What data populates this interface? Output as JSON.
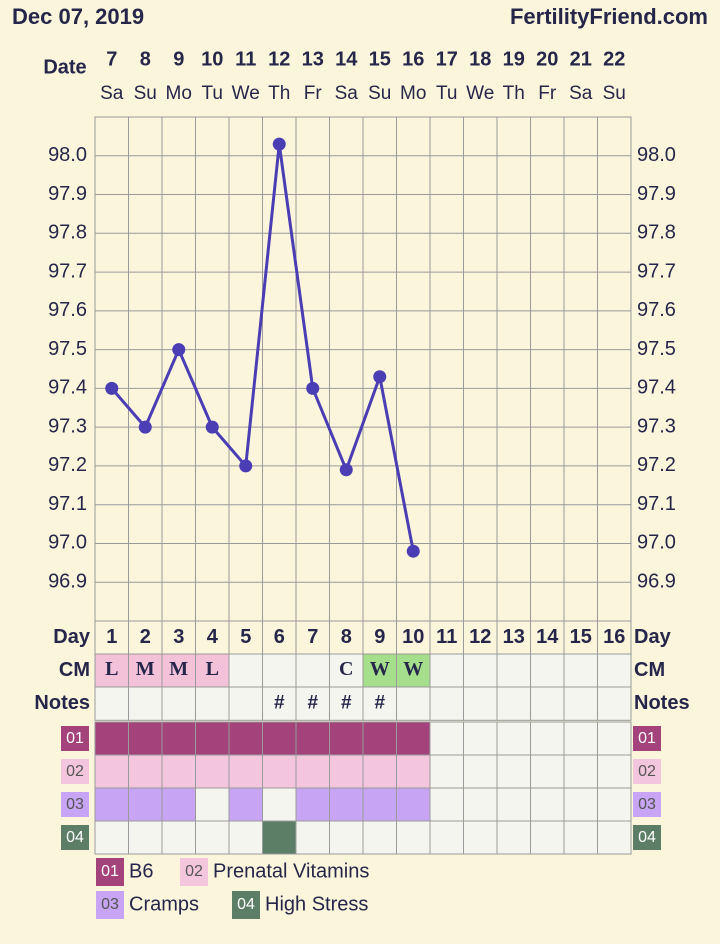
{
  "header": {
    "date": "Dec 07, 2019",
    "site": "FertilityFriend.com"
  },
  "chart_data": {
    "type": "line",
    "x_label": "Date",
    "categories": [
      "7",
      "8",
      "9",
      "10",
      "11",
      "12",
      "13",
      "14",
      "15",
      "16",
      "17",
      "18",
      "19",
      "20",
      "21",
      "22"
    ],
    "weekdays": [
      "Sa",
      "Su",
      "Mo",
      "Tu",
      "We",
      "Th",
      "Fr",
      "Sa",
      "Su",
      "Mo",
      "Tu",
      "We",
      "Th",
      "Fr",
      "Sa",
      "Su"
    ],
    "values": [
      97.4,
      97.3,
      97.5,
      97.3,
      97.2,
      98.03,
      97.4,
      97.19,
      97.43,
      96.98,
      null,
      null,
      null,
      null,
      null,
      null
    ],
    "color": "#4b3db3",
    "ylim": [
      96.8,
      98.1
    ],
    "yticks": [
      96.9,
      {
        "value": 97.0,
        "label": "97.0"
      },
      97.1,
      97.2,
      97.3,
      97.4,
      97.5,
      97.6,
      97.7,
      97.8,
      97.9,
      {
        "value": 98.0,
        "label": "98.0"
      }
    ],
    "grid": true
  },
  "rows": {
    "day_label": "Day",
    "cycle_days": [
      1,
      2,
      3,
      4,
      5,
      6,
      7,
      8,
      9,
      10,
      11,
      12,
      13,
      14,
      15,
      16
    ],
    "cm_label": "CM",
    "cm": [
      "L",
      "M",
      "M",
      "L",
      null,
      null,
      null,
      "C",
      "W",
      "W",
      null,
      null,
      null,
      null,
      null,
      null
    ],
    "cm_colors": {
      "L": "#f3c1d8",
      "M": "#f3c1d8",
      "W": "#a6df8c"
    },
    "notes_label": "Notes",
    "notes": [
      null,
      null,
      null,
      null,
      null,
      "#",
      "#",
      "#",
      "#",
      null,
      null,
      null,
      null,
      null,
      null,
      null
    ]
  },
  "markers": [
    {
      "code": "01",
      "name": "B6",
      "color": "#a4427b",
      "text_color": "#ffffff",
      "days": [
        true,
        true,
        true,
        true,
        true,
        true,
        true,
        true,
        true,
        true,
        false,
        false,
        false,
        false,
        false,
        false
      ]
    },
    {
      "code": "02",
      "name": "Prenatal Vitamins",
      "color": "#f4c6dd",
      "text_color": "#555555",
      "days": [
        true,
        true,
        true,
        true,
        true,
        true,
        true,
        true,
        true,
        true,
        false,
        false,
        false,
        false,
        false,
        false
      ]
    },
    {
      "code": "03",
      "name": "Cramps",
      "color": "#c7a5f4",
      "text_color": "#555555",
      "days": [
        true,
        true,
        true,
        false,
        true,
        false,
        true,
        true,
        true,
        true,
        false,
        false,
        false,
        false,
        false,
        false
      ]
    },
    {
      "code": "04",
      "name": "High Stress",
      "color": "#5c7e67",
      "text_color": "#ffffff",
      "days": [
        false,
        false,
        false,
        false,
        false,
        true,
        false,
        false,
        false,
        false,
        false,
        false,
        false,
        false,
        false,
        false
      ]
    }
  ]
}
